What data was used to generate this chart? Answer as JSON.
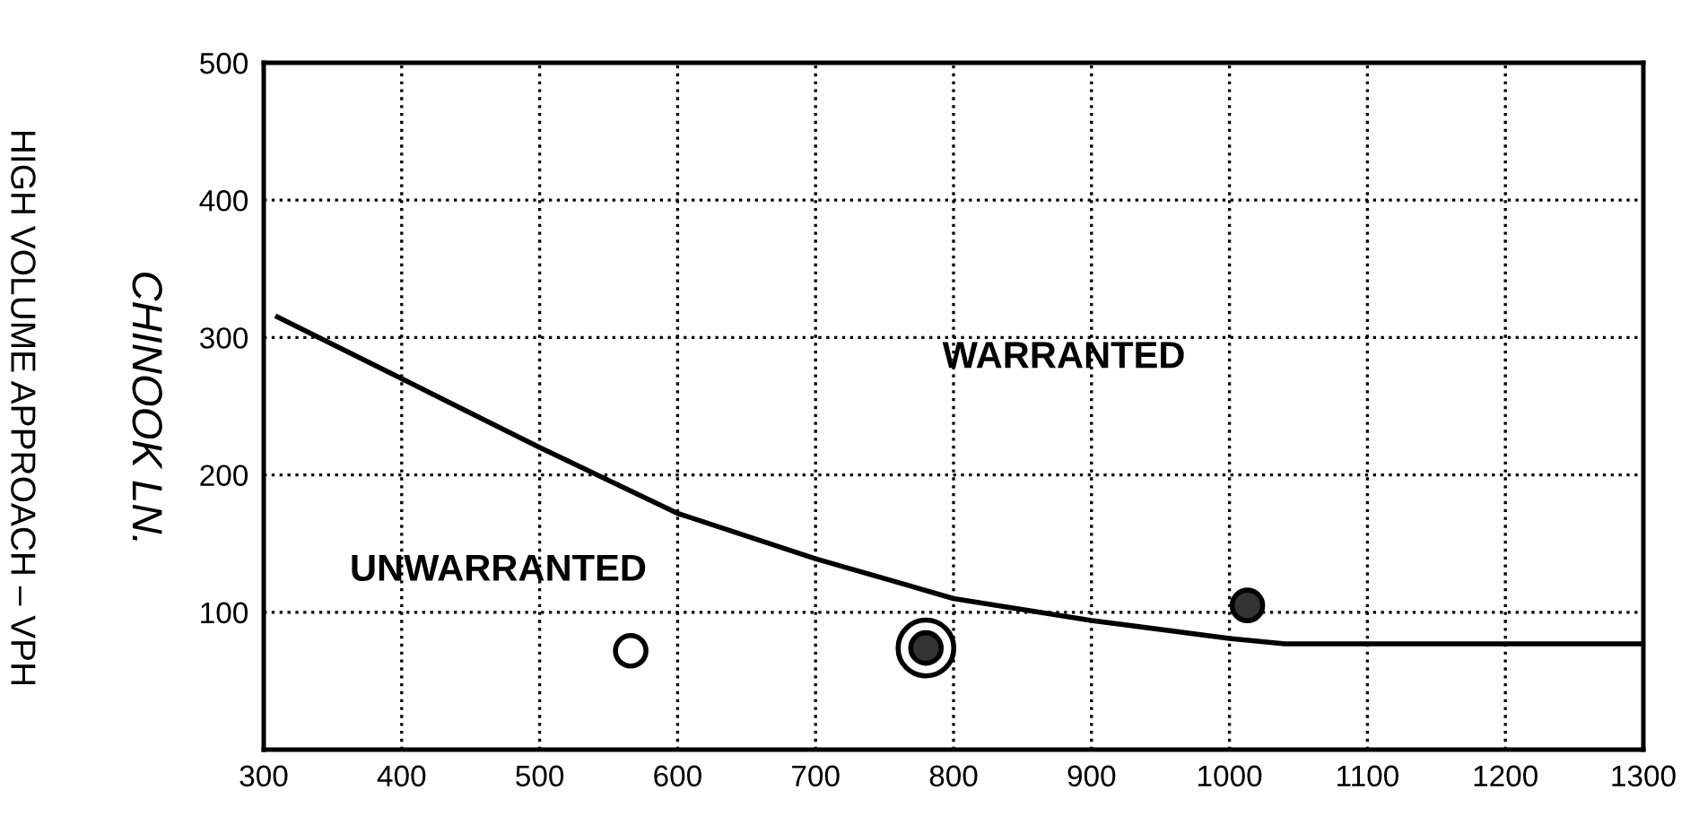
{
  "chart_data": {
    "type": "scatter",
    "ylabel": "HIGH VOLUME APPROACH – VPH",
    "annotations": [
      "CHINOOK LN.",
      "WARRANTED",
      "UNWARRANTED"
    ],
    "series": [
      {
        "type": "line",
        "color": "#000000",
        "x": [
          310,
          400,
          500,
          600,
          700,
          800,
          900,
          1000,
          1040,
          1300
        ],
        "values": [
          315,
          270,
          220,
          172,
          139,
          110,
          94,
          81,
          77,
          77
        ]
      },
      {
        "color": "#ffffff",
        "x": [
          780
        ],
        "values": [
          74
        ],
        "sizes": [
          1
        ],
        "marker": "circle"
      },
      {
        "color": "#ffffff",
        "x": [
          566
        ],
        "values": [
          72
        ],
        "sizes": [
          0.3
        ],
        "marker": "circle"
      },
      {
        "color": "#333333",
        "x": [
          780,
          1013
        ],
        "values": [
          74,
          105
        ],
        "sizes": [
          0.3,
          0.3
        ],
        "marker": "circle"
      }
    ],
    "xlim": [
      300,
      1300
    ],
    "xticks": [
      300,
      400,
      500,
      600,
      700,
      800,
      900,
      1000,
      1100,
      1200,
      1300
    ],
    "ylim": [
      0,
      500
    ],
    "yticks": [
      100,
      200,
      300,
      400,
      500
    ],
    "grid": true,
    "legend": false,
    "line_style": "solid"
  }
}
